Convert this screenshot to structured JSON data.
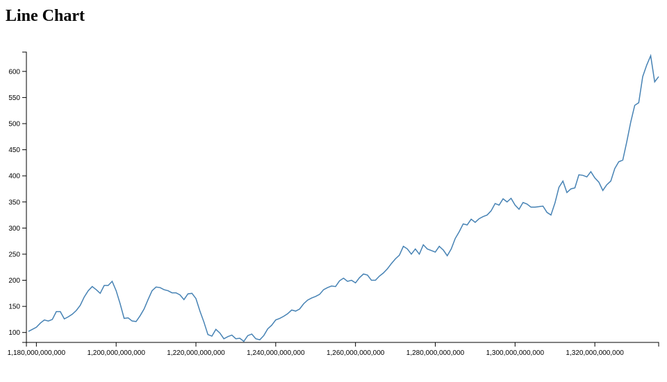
{
  "chart_data": {
    "type": "line",
    "title": "Line Chart",
    "x": [
      1178000000000,
      1179000000000,
      1180000000000,
      1181000000000,
      1182000000000,
      1183000000000,
      1184000000000,
      1185000000000,
      1186000000000,
      1187000000000,
      1188000000000,
      1189000000000,
      1190000000000,
      1191000000000,
      1192000000000,
      1193000000000,
      1194000000000,
      1195000000000,
      1196000000000,
      1197000000000,
      1198000000000,
      1199000000000,
      1200000000000,
      1201000000000,
      1202000000000,
      1203000000000,
      1204000000000,
      1205000000000,
      1206000000000,
      1207000000000,
      1208000000000,
      1209000000000,
      1210000000000,
      1211000000000,
      1212000000000,
      1213000000000,
      1214000000000,
      1215000000000,
      1216000000000,
      1217000000000,
      1218000000000,
      1219000000000,
      1220000000000,
      1221000000000,
      1222000000000,
      1223000000000,
      1224000000000,
      1225000000000,
      1226000000000,
      1227000000000,
      1228000000000,
      1229000000000,
      1230000000000,
      1231000000000,
      1232000000000,
      1233000000000,
      1234000000000,
      1235000000000,
      1236000000000,
      1237000000000,
      1238000000000,
      1239000000000,
      1240000000000,
      1241000000000,
      1242000000000,
      1243000000000,
      1244000000000,
      1245000000000,
      1246000000000,
      1247000000000,
      1248000000000,
      1249000000000,
      1250000000000,
      1251000000000,
      1252000000000,
      1253000000000,
      1254000000000,
      1255000000000,
      1256000000000,
      1257000000000,
      1258000000000,
      1259000000000,
      1260000000000,
      1261000000000,
      1262000000000,
      1263000000000,
      1264000000000,
      1265000000000,
      1266000000000,
      1267000000000,
      1268000000000,
      1269000000000,
      1270000000000,
      1271000000000,
      1272000000000,
      1273000000000,
      1274000000000,
      1275000000000,
      1276000000000,
      1277000000000,
      1278000000000,
      1279000000000,
      1280000000000,
      1281000000000,
      1282000000000,
      1283000000000,
      1284000000000,
      1285000000000,
      1286000000000,
      1287000000000,
      1288000000000,
      1289000000000,
      1290000000000,
      1291000000000,
      1292000000000,
      1293000000000,
      1294000000000,
      1295000000000,
      1296000000000,
      1297000000000,
      1298000000000,
      1299000000000,
      1300000000000,
      1301000000000,
      1302000000000,
      1303000000000,
      1304000000000,
      1305000000000,
      1306000000000,
      1307000000000,
      1308000000000,
      1309000000000,
      1310000000000,
      1311000000000,
      1312000000000,
      1313000000000,
      1314000000000,
      1315000000000,
      1316000000000,
      1317000000000,
      1318000000000,
      1319000000000,
      1320000000000,
      1321000000000,
      1322000000000,
      1323000000000,
      1324000000000,
      1325000000000,
      1326000000000,
      1327000000000,
      1328000000000,
      1329000000000,
      1330000000000,
      1331000000000,
      1332000000000,
      1333000000000,
      1334000000000,
      1335000000000,
      1336000000000
    ],
    "series": [
      {
        "color": "#4682b4",
        "values": [
          102,
          106,
          110,
          118,
          124,
          122,
          125,
          140,
          140,
          126,
          130,
          135,
          142,
          152,
          168,
          180,
          188,
          182,
          175,
          190,
          190,
          198,
          180,
          155,
          127,
          128,
          122,
          121,
          132,
          145,
          163,
          180,
          187,
          186,
          182,
          180,
          176,
          176,
          172,
          163,
          174,
          175,
          165,
          141,
          120,
          96,
          93,
          106,
          99,
          88,
          92,
          95,
          88,
          89,
          83,
          94,
          97,
          88,
          86,
          94,
          107,
          114,
          124,
          127,
          131,
          136,
          143,
          141,
          145,
          155,
          162,
          166,
          169,
          173,
          182,
          186,
          189,
          188,
          199,
          204,
          198,
          200,
          195,
          205,
          212,
          210,
          200,
          200,
          208,
          214,
          222,
          232,
          241,
          248,
          265,
          260,
          250,
          260,
          250,
          268,
          260,
          257,
          254,
          265,
          258,
          247,
          260,
          280,
          293,
          308,
          306,
          317,
          311,
          318,
          322,
          325,
          333,
          347,
          344,
          356,
          350,
          357,
          344,
          336,
          349,
          346,
          340,
          340,
          341,
          342,
          330,
          325,
          348,
          378,
          390,
          368,
          375,
          377,
          402,
          401,
          398,
          408,
          396,
          388,
          372,
          383,
          390,
          414,
          427,
          430,
          465,
          503,
          535,
          540,
          590,
          612,
          630,
          580,
          590
        ]
      }
    ],
    "xlim": [
      1177500000000,
      1336000000000
    ],
    "xticks": [
      {
        "value": 1180000000000,
        "label": "1,180,000,000,000"
      },
      {
        "value": 1200000000000,
        "label": "1,200,000,000,000"
      },
      {
        "value": 1220000000000,
        "label": "1,220,000,000,000"
      },
      {
        "value": 1240000000000,
        "label": "1,240,000,000,000"
      },
      {
        "value": 1260000000000,
        "label": "1,260,000,000,000"
      },
      {
        "value": 1280000000000,
        "label": "1,280,000,000,000"
      },
      {
        "value": 1300000000000,
        "label": "1,300,000,000,000"
      },
      {
        "value": 1320000000000,
        "label": "1,320,000,000,000"
      }
    ],
    "ylim": [
      81,
      637
    ],
    "yticks": [
      100,
      150,
      200,
      250,
      300,
      350,
      400,
      450,
      500,
      550,
      600
    ]
  }
}
